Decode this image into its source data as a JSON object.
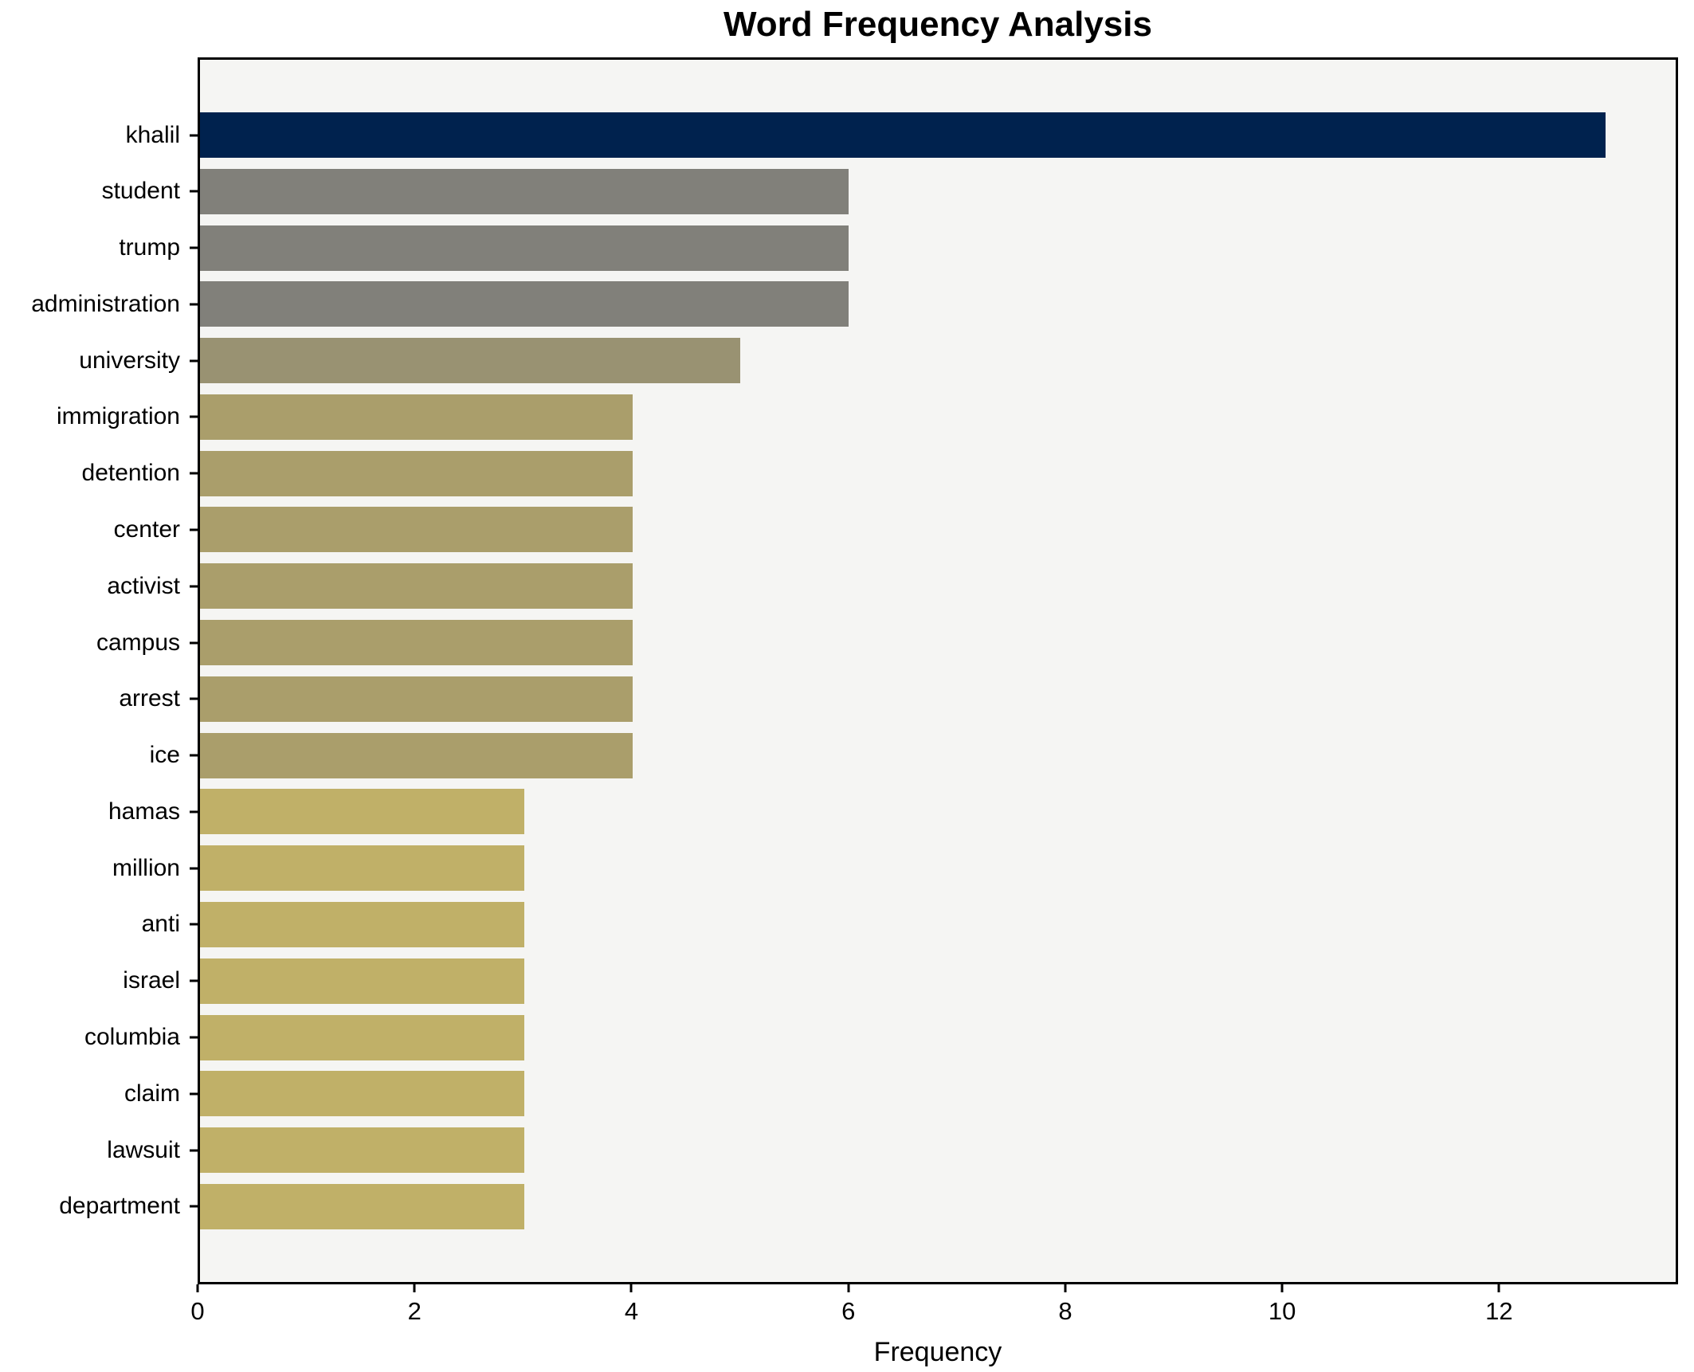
{
  "chart_data": {
    "type": "bar",
    "orientation": "horizontal",
    "title": "Word Frequency Analysis",
    "xlabel": "Frequency",
    "ylabel": "",
    "categories": [
      "khalil",
      "student",
      "trump",
      "administration",
      "university",
      "immigration",
      "detention",
      "center",
      "activist",
      "campus",
      "arrest",
      "ice",
      "hamas",
      "million",
      "anti",
      "israel",
      "columbia",
      "claim",
      "lawsuit",
      "department"
    ],
    "values": [
      13,
      6,
      6,
      6,
      5,
      4,
      4,
      4,
      4,
      4,
      4,
      4,
      3,
      3,
      3,
      3,
      3,
      3,
      3,
      3
    ],
    "bar_colors": [
      "#00224e",
      "#81807a",
      "#81807a",
      "#81807a",
      "#999272",
      "#aa9e6b",
      "#aa9e6b",
      "#aa9e6b",
      "#aa9e6b",
      "#aa9e6b",
      "#aa9e6b",
      "#aa9e6b",
      "#c0b068",
      "#c0b068",
      "#c0b068",
      "#c0b068",
      "#c0b068",
      "#c0b068",
      "#c0b068",
      "#c0b068"
    ],
    "xlim": [
      0,
      13.65
    ],
    "xticks": [
      0,
      2,
      4,
      6,
      8,
      10,
      12
    ],
    "grid": false,
    "legend_position": "none",
    "plot_background": "#f5f5f3",
    "figure_background": "#ffffff",
    "spine_color": "#000000"
  }
}
